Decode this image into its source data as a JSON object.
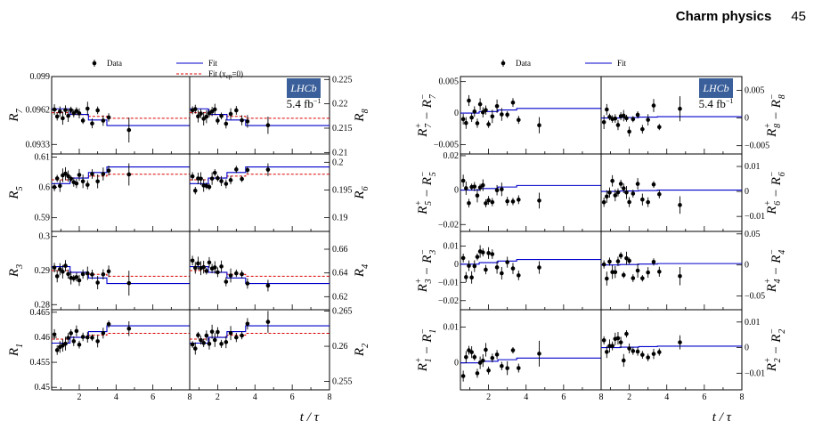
{
  "header": {
    "title": "Charm physics",
    "page_number": "45"
  },
  "colors": {
    "fit": "#0000cc",
    "fit_xcp0": "#dd0000",
    "data": "#000000",
    "logo": "#3a5f9a"
  },
  "logo": {
    "text": "LHCb",
    "lumi": "5.4 fb",
    "lumi_sup": "−1"
  },
  "legend_left": {
    "data": "Data",
    "fit": "Fit",
    "fit0": "Fit (x",
    "fit0_sub": "cp",
    "fit0_end": "=0)"
  },
  "legend_right": {
    "data": "Data",
    "fit": "Fit"
  },
  "xlabel": "t / τ",
  "chart_data": [
    {
      "type": "scatter",
      "panel": "left",
      "x_ticks": [
        "2",
        "4",
        "6",
        "8"
      ],
      "xlim": [
        0.5,
        8
      ],
      "rows": [
        {
          "left": {
            "label": "R_7",
            "ylim": [
              0.0925,
              0.099
            ],
            "ticks": [
              [
                "0.099",
                0.099
              ],
              [
                "0.0962",
                0.0962
              ],
              [
                "0.0933",
                0.0933
              ]
            ]
          },
          "right": {
            "label": "R_8",
            "ylim": [
              0.2097,
              0.2256
            ],
            "ticks": [
              [
                "0.225",
                0.225
              ],
              [
                "0.22",
                0.22
              ],
              [
                "0.215",
                0.215
              ],
              [
                "0.21",
                0.21
              ]
            ]
          }
        },
        {
          "left": {
            "label": "R_5",
            "ylim": [
              0.5855,
              0.611
            ],
            "ticks": [
              [
                "0.61",
                0.61
              ],
              [
                "0.6",
                0.6
              ],
              [
                "0.59",
                0.59
              ]
            ]
          },
          "right": {
            "label": "R_6",
            "ylim": [
              0.1875,
              0.2015
            ],
            "ticks": [
              [
                "0.2",
                0.2
              ],
              [
                "0.195",
                0.195
              ],
              [
                "0.19",
                0.19
              ]
            ]
          }
        },
        {
          "left": {
            "label": "R_3",
            "ylim": [
              0.2785,
              0.3015
            ],
            "ticks": [
              [
                "0.3",
                0.3
              ],
              [
                "0.29",
                0.29
              ],
              [
                "0.28",
                0.28
              ]
            ]
          },
          "right": {
            "label": "R_4",
            "ylim": [
              0.609,
              0.675
            ],
            "ticks": [
              [
                "0.66",
                0.66
              ],
              [
                "0.64",
                0.64
              ],
              [
                "0.62",
                0.62
              ]
            ]
          }
        },
        {
          "left": {
            "label": "R_1",
            "ylim": [
              0.4495,
              0.4655
            ],
            "ticks": [
              [
                "0.465",
                0.465
              ],
              [
                "0.46",
                0.46
              ],
              [
                "0.455",
                0.455
              ],
              [
                "0.45",
                0.45
              ]
            ]
          },
          "right": {
            "label": "R_2",
            "ylim": [
              0.2538,
              0.2652
            ],
            "ticks": [
              [
                "0.265",
                0.265
              ],
              [
                "0.26",
                0.26
              ],
              [
                "0.255",
                0.255
              ]
            ]
          }
        }
      ]
    },
    {
      "type": "scatter",
      "panel": "right",
      "x_ticks": [
        "2",
        "4",
        "6",
        "8"
      ],
      "xlim": [
        0.5,
        8
      ],
      "rows": [
        {
          "left": {
            "label": "R_7^+ − R_7^−",
            "ylim": [
              -0.0065,
              0.0058
            ],
            "ticks": [
              [
                "0.005",
                0.005
              ],
              [
                "0",
                0
              ],
              [
                "−0.005",
                -0.005
              ]
            ]
          },
          "right": {
            "label": "R_8^+ − R_8^−",
            "ylim": [
              -0.0065,
              0.0075
            ],
            "ticks": [
              [
                "0.005",
                0.005
              ],
              [
                "0",
                0
              ],
              [
                "−0.005",
                -0.005
              ]
            ]
          }
        },
        {
          "left": {
            "label": "R_5^+ − R_5^−",
            "ylim": [
              -0.024,
              0.021
            ],
            "ticks": [
              [
                "0.02",
                0.02
              ],
              [
                "0",
                0
              ],
              [
                "−0.02",
                -0.02
              ]
            ]
          },
          "right": {
            "label": "R_6^+ − R_6^−",
            "ylim": [
              -0.016,
              0.015
            ],
            "ticks": [
              [
                "0.01",
                0.01
              ],
              [
                "0",
                0
              ],
              [
                "−0.01",
                -0.01
              ]
            ]
          }
        },
        {
          "left": {
            "label": "R_3^+ − R_3^−",
            "ylim": [
              -0.025,
              0.018
            ],
            "ticks": [
              [
                "0.01",
                0.01
              ],
              [
                "0",
                0
              ],
              [
                "−0.01",
                -0.01
              ],
              [
                "−0.02",
                -0.02
              ]
            ]
          },
          "right": {
            "label": "R_4^+ − R_4^−",
            "ylim": [
              -0.072,
              0.054
            ],
            "ticks": [
              [
                "0.05",
                0.05
              ],
              [
                "0",
                0
              ],
              [
                "−0.05",
                -0.05
              ]
            ]
          }
        },
        {
          "left": {
            "label": "R_1^+ − R_1^−",
            "ylim": [
              -0.0075,
              0.0148
            ],
            "ticks": [
              [
                "0.01",
                0.01
              ],
              [
                "0",
                0
              ]
            ]
          },
          "right": {
            "label": "R_2^+ − R_2^−",
            "ylim": [
              -0.0165,
              0.0148
            ],
            "ticks": [
              [
                "0.01",
                0.01
              ],
              [
                "0",
                0
              ],
              [
                "−0.01",
                -0.01
              ]
            ]
          }
        }
      ]
    }
  ]
}
